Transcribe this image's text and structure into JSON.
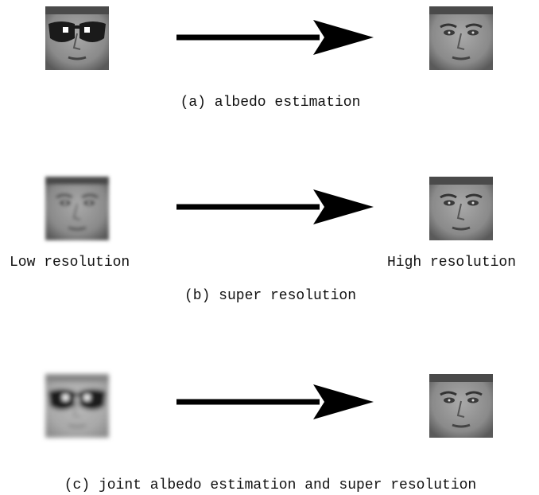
{
  "panels": [
    {
      "caption": "(a) albedo estimation"
    },
    {
      "caption": "(b) super resolution",
      "input_label": "Low resolution",
      "output_label": "High resolution"
    },
    {
      "caption": "(c) joint albedo estimation and super resolution"
    }
  ]
}
